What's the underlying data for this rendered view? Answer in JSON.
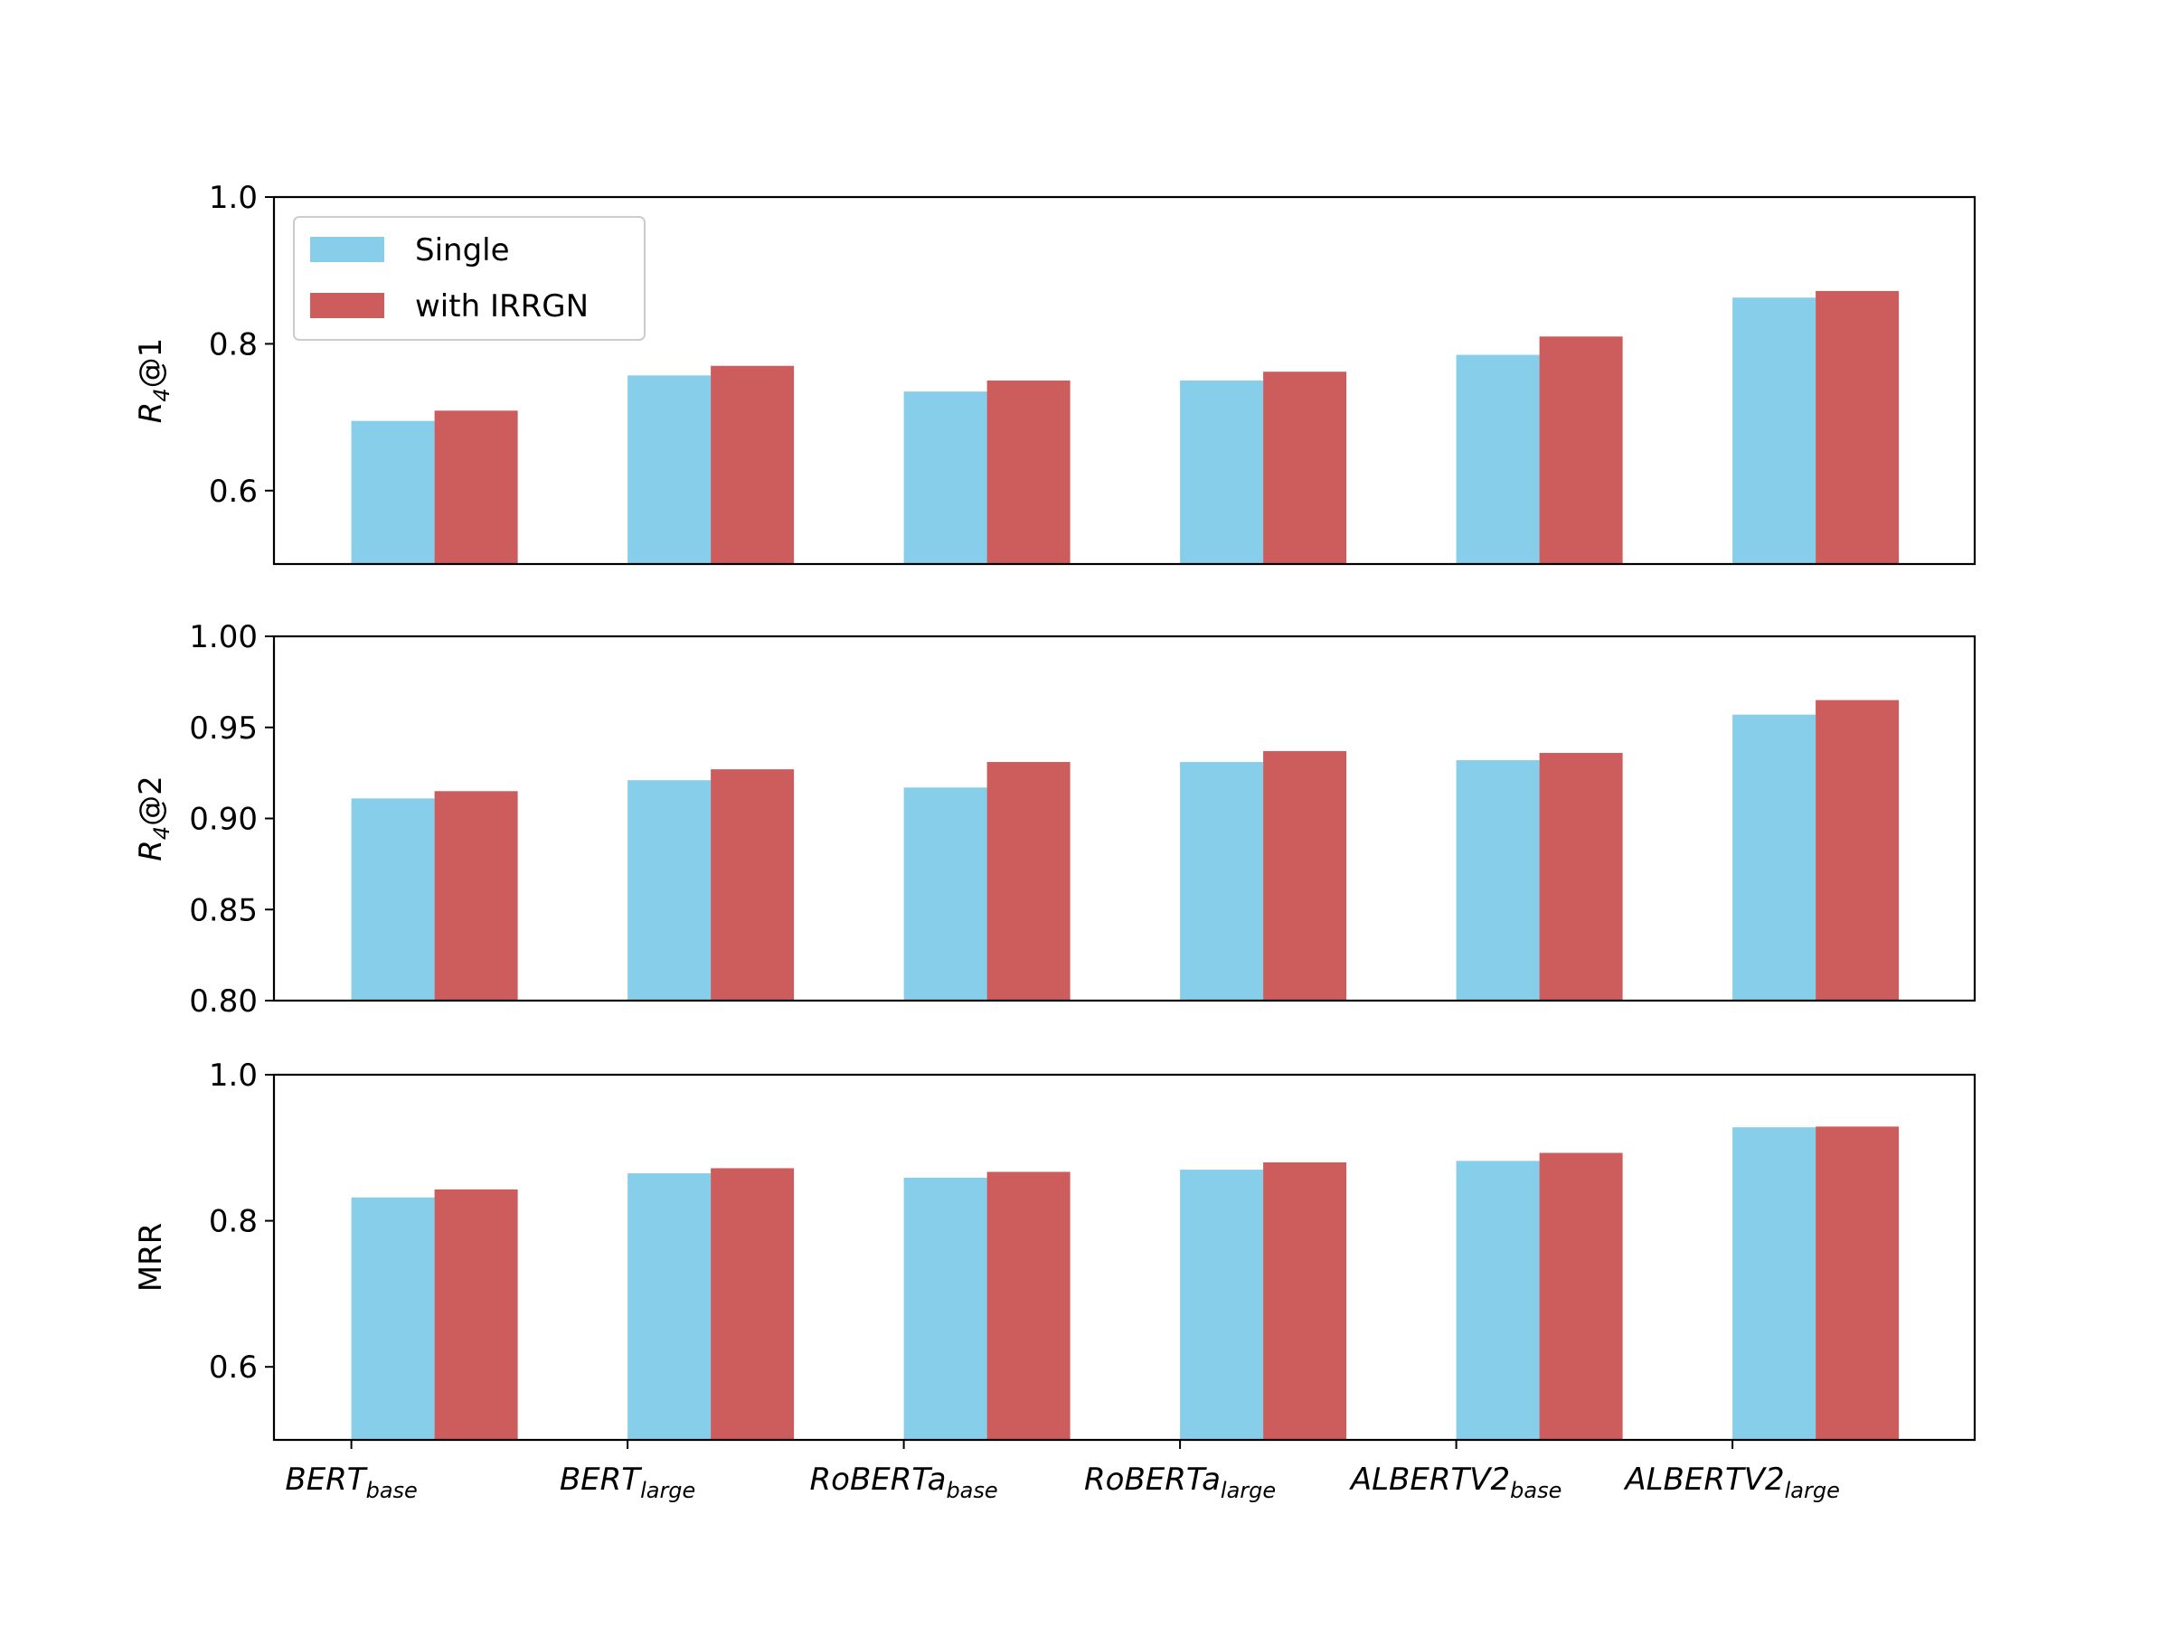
{
  "chart_data": [
    {
      "type": "bar",
      "ylabel": {
        "text": "R",
        "subscript": "4",
        "suffix": "@1"
      },
      "ylim": [
        0.5,
        1.0
      ],
      "yticks": [
        0.6,
        0.8,
        {
          "value": 1.0,
          "label": "1.0"
        }
      ],
      "legend": "upper left",
      "series": [
        {
          "name": "Single",
          "color": "#87ceeb",
          "values": [
            0.695,
            0.757,
            0.735,
            0.75,
            0.785,
            0.863
          ]
        },
        {
          "name": "with IRRGN",
          "color": "#cd5c5c",
          "values": [
            0.709,
            0.77,
            0.75,
            0.762,
            0.81,
            0.872
          ]
        }
      ]
    },
    {
      "type": "bar",
      "ylabel": {
        "text": "R",
        "subscript": "4",
        "suffix": "@2"
      },
      "ylim": [
        0.8,
        1.0
      ],
      "yticks": [
        {
          "value": 0.8,
          "label": "0.80"
        },
        0.85,
        {
          "value": 0.9,
          "label": "0.90"
        },
        0.95,
        {
          "value": 1.0,
          "label": "1.00"
        }
      ],
      "series": [
        {
          "color": "#87ceeb",
          "values": [
            0.911,
            0.921,
            0.917,
            0.931,
            0.932,
            0.957
          ]
        },
        {
          "color": "#cd5c5c",
          "values": [
            0.915,
            0.927,
            0.931,
            0.937,
            0.936,
            0.965
          ]
        }
      ]
    },
    {
      "type": "bar",
      "ylabel": {
        "text": "MRR"
      },
      "ylim": [
        0.5,
        1.0
      ],
      "yticks": [
        0.6,
        0.8,
        {
          "value": 1.0,
          "label": "1.0"
        }
      ],
      "categories": [
        {
          "text": "BERT",
          "subscript": "base"
        },
        {
          "text": "BERT",
          "subscript": "large"
        },
        {
          "text": "RoBERTa",
          "subscript": "base"
        },
        {
          "text": "RoBERTa",
          "subscript": "large"
        },
        {
          "text": "ALBERTV2",
          "subscript": "base"
        },
        {
          "text": "ALBERTV2",
          "subscript": "large"
        }
      ],
      "series": [
        {
          "color": "#87ceeb",
          "values": [
            0.832,
            0.865,
            0.859,
            0.87,
            0.882,
            0.928
          ]
        },
        {
          "color": "#cd5c5c",
          "values": [
            0.843,
            0.872,
            0.867,
            0.88,
            0.893,
            0.929
          ]
        }
      ]
    }
  ]
}
